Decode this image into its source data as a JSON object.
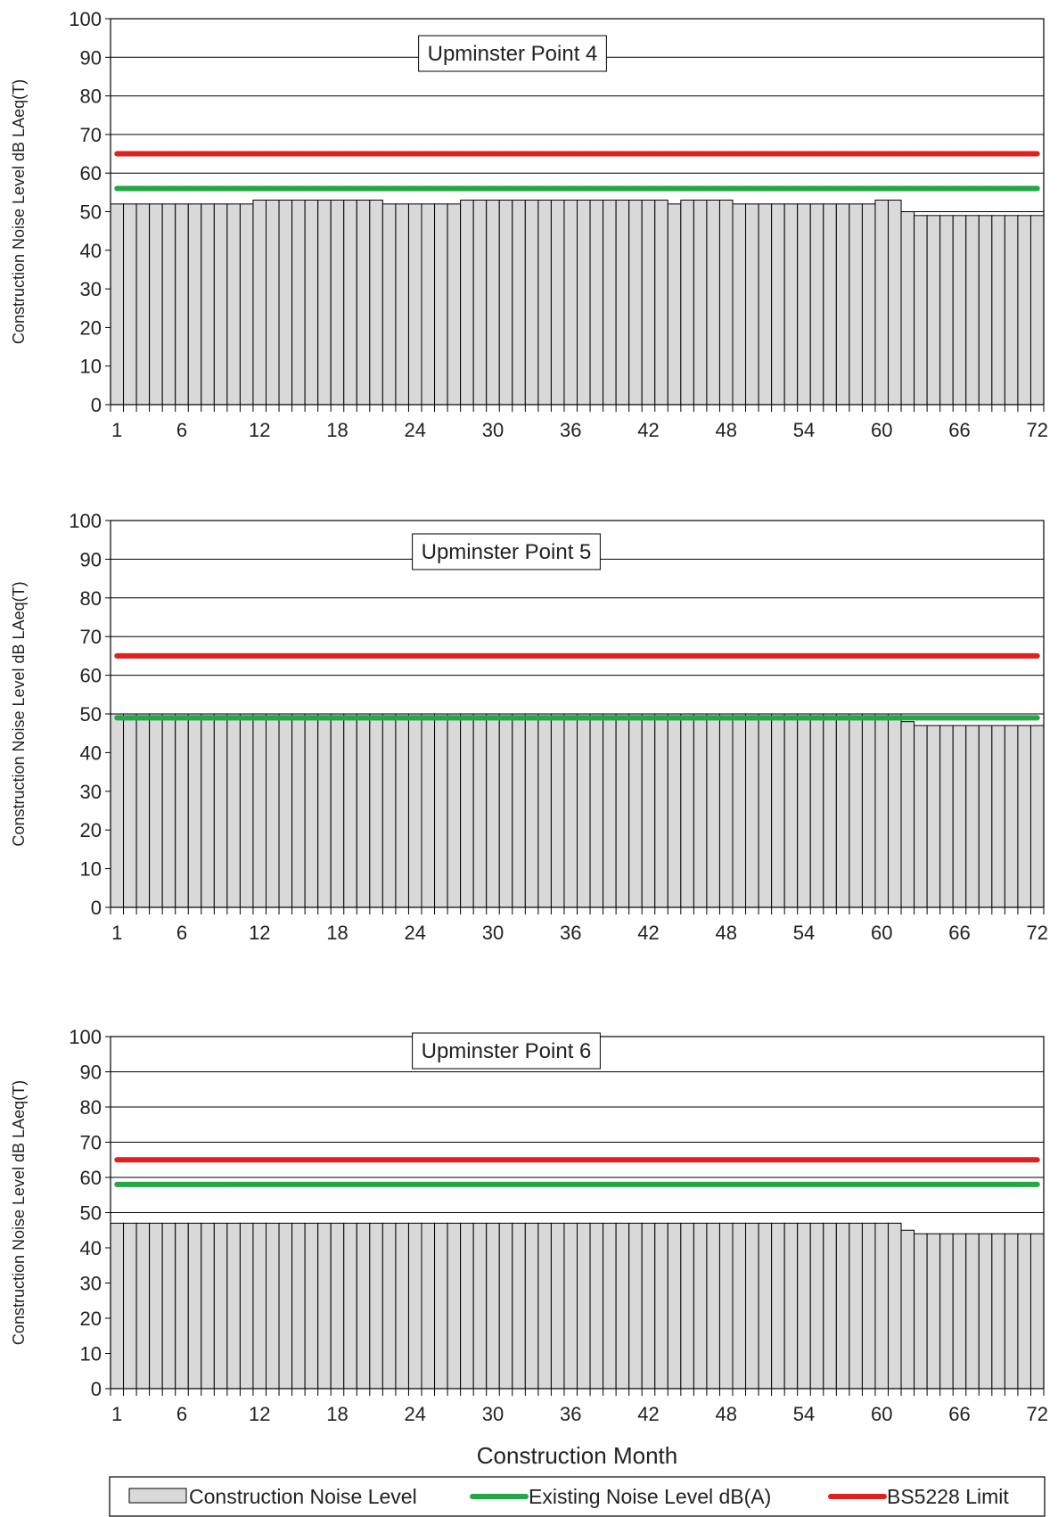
{
  "chart_data": [
    {
      "type": "bar",
      "title": "Upminster Point 4",
      "ylabel": "Construction Noise Level dB LAeq(T)",
      "xlabel": "",
      "ylim": [
        0,
        100
      ],
      "yticks": [
        0,
        10,
        20,
        30,
        40,
        50,
        60,
        70,
        80,
        90,
        100
      ],
      "xticks": [
        1,
        6,
        12,
        18,
        24,
        30,
        36,
        42,
        48,
        54,
        60,
        66,
        72
      ],
      "grid": true,
      "x": [
        1,
        2,
        3,
        4,
        5,
        6,
        7,
        8,
        9,
        10,
        11,
        12,
        13,
        14,
        15,
        16,
        17,
        18,
        19,
        20,
        21,
        22,
        23,
        24,
        25,
        26,
        27,
        28,
        29,
        30,
        31,
        32,
        33,
        34,
        35,
        36,
        37,
        38,
        39,
        40,
        41,
        42,
        43,
        44,
        45,
        46,
        47,
        48,
        49,
        50,
        51,
        52,
        53,
        54,
        55,
        56,
        57,
        58,
        59,
        60,
        61,
        62,
        63,
        64,
        65,
        66,
        67,
        68,
        69,
        70,
        71,
        72
      ],
      "series": [
        {
          "name": "Construction Noise Level",
          "type": "bar",
          "values": [
            52,
            52,
            52,
            52,
            52,
            52,
            52,
            52,
            52,
            52,
            52,
            53,
            53,
            53,
            53,
            53,
            53,
            53,
            53,
            53,
            53,
            52,
            52,
            52,
            52,
            52,
            52,
            53,
            53,
            53,
            53,
            53,
            53,
            53,
            53,
            53,
            53,
            53,
            53,
            53,
            53,
            53,
            53,
            52,
            53,
            53,
            53,
            53,
            52,
            52,
            52,
            52,
            52,
            52,
            52,
            52,
            52,
            52,
            52,
            53,
            53,
            50,
            49,
            49,
            49,
            49,
            49,
            49,
            49,
            49,
            49,
            49
          ]
        },
        {
          "name": "Existing Noise Level dB(A)",
          "type": "line",
          "value": 56
        },
        {
          "name": "BS5228 Limit",
          "type": "line",
          "value": 65
        }
      ]
    },
    {
      "type": "bar",
      "title": "Upminster Point 5",
      "ylabel": "Construction Noise Level dB LAeq(T)",
      "xlabel": "",
      "ylim": [
        0,
        100
      ],
      "yticks": [
        0,
        10,
        20,
        30,
        40,
        50,
        60,
        70,
        80,
        90,
        100
      ],
      "xticks": [
        1,
        6,
        12,
        18,
        24,
        30,
        36,
        42,
        48,
        54,
        60,
        66,
        72
      ],
      "grid": true,
      "x": [
        1,
        2,
        3,
        4,
        5,
        6,
        7,
        8,
        9,
        10,
        11,
        12,
        13,
        14,
        15,
        16,
        17,
        18,
        19,
        20,
        21,
        22,
        23,
        24,
        25,
        26,
        27,
        28,
        29,
        30,
        31,
        32,
        33,
        34,
        35,
        36,
        37,
        38,
        39,
        40,
        41,
        42,
        43,
        44,
        45,
        46,
        47,
        48,
        49,
        50,
        51,
        52,
        53,
        54,
        55,
        56,
        57,
        58,
        59,
        60,
        61,
        62,
        63,
        64,
        65,
        66,
        67,
        68,
        69,
        70,
        71,
        72
      ],
      "series": [
        {
          "name": "Construction Noise Level",
          "type": "bar",
          "values": [
            50,
            50,
            50,
            50,
            50,
            50,
            50,
            50,
            50,
            50,
            50,
            50,
            50,
            50,
            50,
            50,
            50,
            50,
            50,
            50,
            50,
            50,
            50,
            50,
            50,
            50,
            50,
            50,
            50,
            50,
            50,
            50,
            50,
            50,
            50,
            50,
            50,
            50,
            50,
            50,
            50,
            50,
            50,
            50,
            50,
            50,
            50,
            50,
            50,
            50,
            50,
            50,
            50,
            50,
            50,
            50,
            50,
            50,
            50,
            50,
            50,
            48,
            47,
            47,
            47,
            47,
            47,
            47,
            47,
            47,
            47,
            47
          ]
        },
        {
          "name": "Existing Noise Level dB(A)",
          "type": "line",
          "value": 49
        },
        {
          "name": "BS5228 Limit",
          "type": "line",
          "value": 65
        }
      ]
    },
    {
      "type": "bar",
      "title": "Upminster Point 6",
      "ylabel": "Construction Noise Level dB LAeq(T)",
      "xlabel": "Construction Month",
      "ylim": [
        0,
        100
      ],
      "yticks": [
        0,
        10,
        20,
        30,
        40,
        50,
        60,
        70,
        80,
        90,
        100
      ],
      "xticks": [
        1,
        6,
        12,
        18,
        24,
        30,
        36,
        42,
        48,
        54,
        60,
        66,
        72
      ],
      "grid": true,
      "x": [
        1,
        2,
        3,
        4,
        5,
        6,
        7,
        8,
        9,
        10,
        11,
        12,
        13,
        14,
        15,
        16,
        17,
        18,
        19,
        20,
        21,
        22,
        23,
        24,
        25,
        26,
        27,
        28,
        29,
        30,
        31,
        32,
        33,
        34,
        35,
        36,
        37,
        38,
        39,
        40,
        41,
        42,
        43,
        44,
        45,
        46,
        47,
        48,
        49,
        50,
        51,
        52,
        53,
        54,
        55,
        56,
        57,
        58,
        59,
        60,
        61,
        62,
        63,
        64,
        65,
        66,
        67,
        68,
        69,
        70,
        71,
        72
      ],
      "series": [
        {
          "name": "Construction Noise Level",
          "type": "bar",
          "values": [
            47,
            47,
            47,
            47,
            47,
            47,
            47,
            47,
            47,
            47,
            47,
            47,
            47,
            47,
            47,
            47,
            47,
            47,
            47,
            47,
            47,
            47,
            47,
            47,
            47,
            47,
            47,
            47,
            47,
            47,
            47,
            47,
            47,
            47,
            47,
            47,
            47,
            47,
            47,
            47,
            47,
            47,
            47,
            47,
            47,
            47,
            47,
            47,
            47,
            47,
            47,
            47,
            47,
            47,
            47,
            47,
            47,
            47,
            47,
            47,
            47,
            45,
            44,
            44,
            44,
            44,
            44,
            44,
            44,
            44,
            44,
            44
          ]
        },
        {
          "name": "Existing Noise Level dB(A)",
          "type": "line",
          "value": 58
        },
        {
          "name": "BS5228 Limit",
          "type": "line",
          "value": 65
        }
      ]
    }
  ],
  "legend": {
    "items": [
      {
        "label": "Construction Noise Level",
        "kind": "bar",
        "color": "#d9d9d9"
      },
      {
        "label": "Existing Noise Level dB(A)",
        "kind": "line",
        "color": "#22a844"
      },
      {
        "label": "BS5228 Limit",
        "kind": "line",
        "color": "#e02020"
      }
    ],
    "placement": "bottom"
  },
  "colors": {
    "bar_fill": "#d9d9d9",
    "bar_stroke": "#000000",
    "existing_line": "#22a844",
    "limit_line": "#e02020",
    "grid": "#000000"
  }
}
